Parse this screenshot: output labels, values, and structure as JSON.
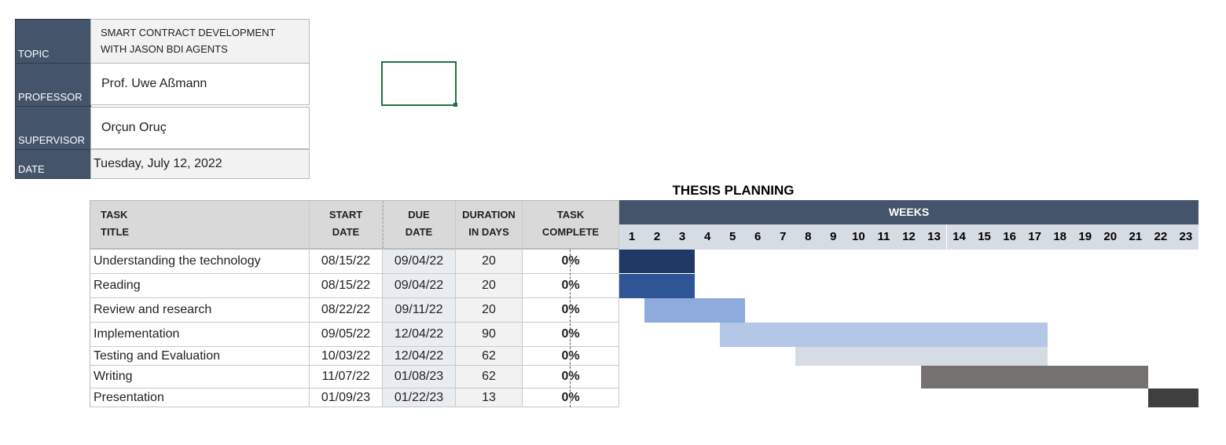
{
  "info": {
    "topic_label": "TOPIC",
    "topic_value": "SMART CONTRACT DEVELOPMENT WITH JASON BDI AGENTS",
    "professor_label": "PROFESSOR",
    "professor_value": "Prof. Uwe Aßmann",
    "supervisor_label": "SUPERVISOR",
    "supervisor_value": "Orçun Oruç",
    "date_label": "DATE",
    "date_value": "Tuesday, July 12, 2022"
  },
  "title": "THESIS PLANNING",
  "headers": {
    "task_line1": "TASK",
    "task_line2": "TITLE",
    "start_line1": "START",
    "start_line2": "DATE",
    "due_line1": "DUE",
    "due_line2": "DATE",
    "duration_line1": "DURATION",
    "duration_line2": "IN DAYS",
    "complete_line1": "TASK",
    "complete_line2": "COMPLETE",
    "weeks": "WEEKS"
  },
  "week_numbers": [
    "1",
    "2",
    "3",
    "4",
    "5",
    "6",
    "7",
    "8",
    "9",
    "10",
    "11",
    "12",
    "13",
    "14",
    "15",
    "16",
    "17",
    "18",
    "19",
    "20",
    "21",
    "22",
    "23"
  ],
  "tasks": [
    {
      "title": "Understanding the technology",
      "start": "08/15/22",
      "due": "09/04/22",
      "duration": "20",
      "complete": "0%",
      "bar_start_week": 1,
      "bar_end_week": 3,
      "color": "#203864"
    },
    {
      "title": "Reading",
      "start": "08/15/22",
      "due": "09/04/22",
      "duration": "20",
      "complete": "0%",
      "bar_start_week": 1,
      "bar_end_week": 3,
      "color": "#2f5597"
    },
    {
      "title": "Review and research",
      "start": "08/22/22",
      "due": "09/11/22",
      "duration": "20",
      "complete": "0%",
      "bar_start_week": 2,
      "bar_end_week": 5,
      "color": "#8faadc"
    },
    {
      "title": "Implementation",
      "start": "09/05/22",
      "due": "12/04/22",
      "duration": "90",
      "complete": "0%",
      "bar_start_week": 5,
      "bar_end_week": 17,
      "color": "#b4c7e7"
    },
    {
      "title": "Testing and Evaluation",
      "start": "10/03/22",
      "due": "12/04/22",
      "duration": "62",
      "complete": "0%",
      "bar_start_week": 8,
      "bar_end_week": 17,
      "color": "#d6dce4"
    },
    {
      "title": "Writing",
      "start": "11/07/22",
      "due": "01/08/23",
      "duration": "62",
      "complete": "0%",
      "bar_start_week": 13,
      "bar_end_week": 21,
      "color": "#767171"
    },
    {
      "title": "Presentation",
      "start": "01/09/23",
      "due": "01/22/23",
      "duration": "13",
      "complete": "0%",
      "bar_start_week": 22,
      "bar_end_week": 23,
      "color": "#3f3f3f"
    }
  ]
}
